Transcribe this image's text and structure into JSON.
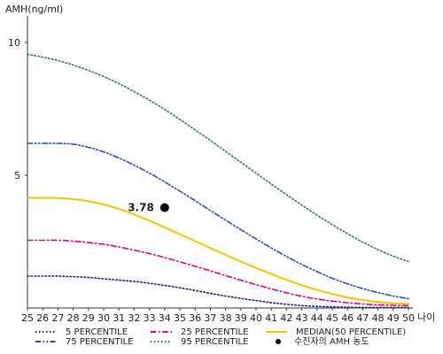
{
  "chart_data": {
    "type": "line",
    "ylabel": "AMH(ng/ml)",
    "xlabel": "나이",
    "xlim": [
      25,
      50
    ],
    "ylim": [
      0,
      11
    ],
    "x_ticks": [
      25,
      26,
      27,
      28,
      29,
      30,
      31,
      32,
      33,
      34,
      35,
      36,
      37,
      38,
      39,
      40,
      41,
      42,
      43,
      44,
      45,
      46,
      47,
      48,
      49,
      50
    ],
    "y_ticks": [
      5,
      10
    ],
    "grid": false,
    "legend_position": "bottom",
    "series": [
      {
        "name": "5 PERCENTILE",
        "color": "#1a237e",
        "dash": "dotted",
        "x": [
          25,
          26,
          27,
          28,
          29,
          30,
          31,
          32,
          33,
          34,
          35,
          36,
          37,
          38,
          39,
          40,
          41,
          42,
          43,
          44,
          45,
          46,
          47,
          48,
          49,
          50
        ],
        "y": [
          1.2,
          1.2,
          1.2,
          1.18,
          1.15,
          1.1,
          1.05,
          1.0,
          0.93,
          0.85,
          0.76,
          0.66,
          0.55,
          0.45,
          0.36,
          0.28,
          0.2,
          0.14,
          0.09,
          0.06,
          0.04,
          0.03,
          0.02,
          0.02,
          0.02,
          0.02
        ]
      },
      {
        "name": "25 PERCENTILE",
        "color": "#e6007e",
        "dash": "dashdot",
        "x": [
          25,
          26,
          27,
          28,
          29,
          30,
          31,
          32,
          33,
          34,
          35,
          36,
          37,
          38,
          39,
          40,
          41,
          42,
          43,
          44,
          45,
          46,
          47,
          48,
          49,
          50
        ],
        "y": [
          2.55,
          2.55,
          2.55,
          2.52,
          2.47,
          2.4,
          2.3,
          2.18,
          2.05,
          1.9,
          1.74,
          1.57,
          1.4,
          1.22,
          1.05,
          0.88,
          0.72,
          0.57,
          0.44,
          0.34,
          0.26,
          0.2,
          0.15,
          0.12,
          0.1,
          0.09
        ]
      },
      {
        "name": "MEDIAN(50 PERCENTILE)",
        "color": "#f5c400",
        "dash": "solid",
        "x": [
          25,
          26,
          27,
          28,
          29,
          30,
          31,
          32,
          33,
          34,
          35,
          36,
          37,
          38,
          39,
          40,
          41,
          42,
          43,
          44,
          45,
          46,
          47,
          48,
          49,
          50
        ],
        "y": [
          4.15,
          4.15,
          4.14,
          4.1,
          4.02,
          3.9,
          3.73,
          3.52,
          3.29,
          3.04,
          2.78,
          2.52,
          2.26,
          2.0,
          1.75,
          1.51,
          1.28,
          1.06,
          0.86,
          0.68,
          0.53,
          0.4,
          0.3,
          0.23,
          0.18,
          0.15
        ]
      },
      {
        "name": "75 PERCENTILE",
        "color": "#2a4dbd",
        "dash": "dashdotdot",
        "x": [
          25,
          26,
          27,
          28,
          29,
          30,
          31,
          32,
          33,
          34,
          35,
          36,
          37,
          38,
          39,
          40,
          41,
          42,
          43,
          44,
          45,
          46,
          47,
          48,
          49,
          50
        ],
        "y": [
          6.2,
          6.2,
          6.2,
          6.17,
          6.05,
          5.88,
          5.65,
          5.38,
          5.08,
          4.75,
          4.4,
          4.04,
          3.67,
          3.31,
          2.95,
          2.6,
          2.26,
          1.94,
          1.64,
          1.37,
          1.12,
          0.91,
          0.73,
          0.58,
          0.45,
          0.35
        ]
      },
      {
        "name": "95 PERCENTILE",
        "color": "#2e7d4f",
        "dash": "dotted",
        "x": [
          25,
          26,
          27,
          28,
          29,
          30,
          31,
          32,
          33,
          34,
          35,
          36,
          37,
          38,
          39,
          40,
          41,
          42,
          43,
          44,
          45,
          46,
          47,
          48,
          49,
          50
        ],
        "y": [
          9.55,
          9.45,
          9.32,
          9.15,
          8.95,
          8.72,
          8.45,
          8.15,
          7.83,
          7.48,
          7.1,
          6.71,
          6.31,
          5.9,
          5.49,
          5.08,
          4.67,
          4.27,
          3.88,
          3.5,
          3.14,
          2.8,
          2.48,
          2.2,
          1.95,
          1.75
        ]
      }
    ],
    "points": [
      {
        "name": "수진자의 AMH 농도",
        "x": 34,
        "y": 3.78,
        "label": "3.78",
        "color": "#000000"
      }
    ]
  }
}
